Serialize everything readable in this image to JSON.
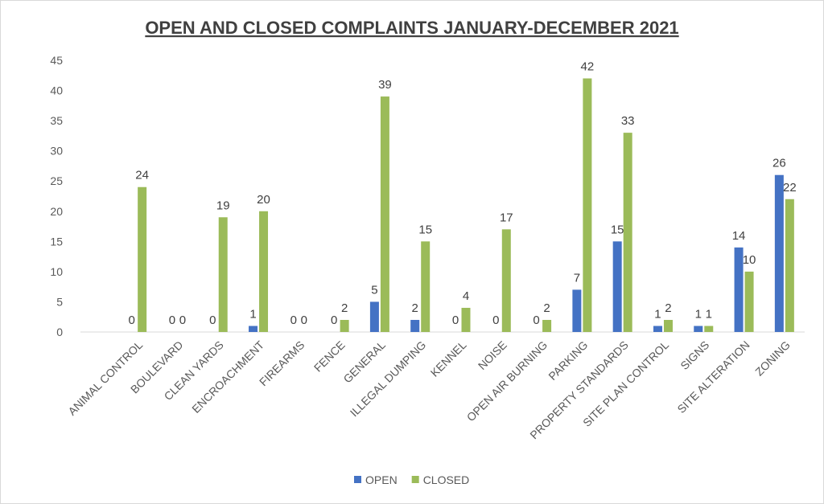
{
  "chart_data": {
    "type": "bar",
    "title": "OPEN AND CLOSED COMPLAINTS JANUARY-DECEMBER 2021",
    "categories": [
      "ANIMAL CONTROL",
      "BOULEVARD",
      "CLEAN YARDS",
      "ENCROACHMENT",
      "FIREARMS",
      "FENCE",
      "GENERAL",
      "ILLEGAL DUMPING",
      "KENNEL",
      "NOISE",
      "OPEN AIR BURNING",
      "PARKING",
      "PROPERTY STANDARDS",
      "SITE PLAN CONTROL",
      "SIGNS",
      "SITE ALTERATION",
      "ZONING"
    ],
    "series": [
      {
        "name": "OPEN",
        "color": "#4472c4",
        "values": [
          0,
          0,
          0,
          1,
          0,
          0,
          5,
          2,
          0,
          0,
          0,
          7,
          15,
          1,
          1,
          14,
          26
        ]
      },
      {
        "name": "CLOSED",
        "color": "#9bbb59",
        "values": [
          24,
          0,
          19,
          20,
          0,
          2,
          39,
          15,
          4,
          17,
          2,
          42,
          33,
          2,
          1,
          10,
          22
        ]
      }
    ],
    "ylim": [
      0,
      45
    ],
    "yticks": [
      0,
      5,
      10,
      15,
      20,
      25,
      30,
      35,
      40,
      45
    ],
    "grid": false,
    "legend": "bottom"
  }
}
